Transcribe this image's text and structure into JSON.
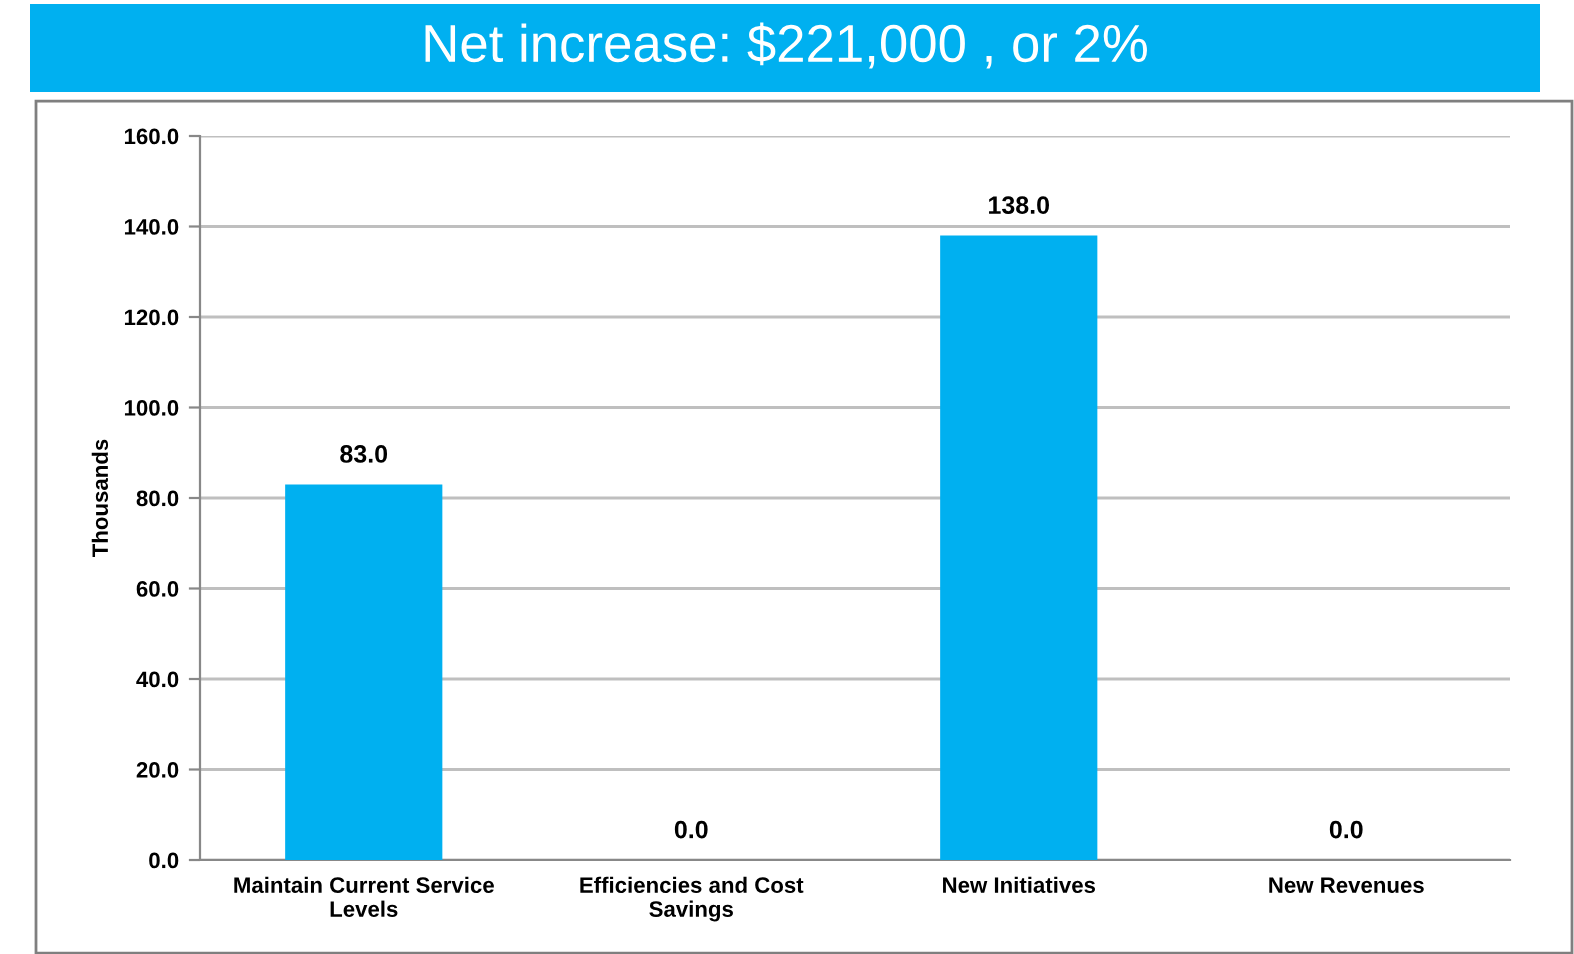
{
  "chart_data": {
    "type": "bar",
    "title": "Net increase: $221,000 , or 2%",
    "ylabel": "Thousands",
    "categories": [
      "Maintain Current Service Levels",
      "Efficiencies and Cost Savings",
      "New Initiatives",
      "New Revenues"
    ],
    "values": [
      83.0,
      0.0,
      138.0,
      0.0
    ],
    "value_labels": [
      "83.0",
      "0.0",
      "138.0",
      "0.0"
    ],
    "color": "#00b0f0",
    "ylim": [
      0,
      160
    ],
    "yticks": [
      {
        "value": 0,
        "label": "0.0"
      },
      {
        "value": 20,
        "label": "20.0"
      },
      {
        "value": 40,
        "label": "40.0"
      },
      {
        "value": 60,
        "label": "60.0"
      },
      {
        "value": 80,
        "label": "80.0"
      },
      {
        "value": 100,
        "label": "100.0"
      },
      {
        "value": 120,
        "label": "120.0"
      },
      {
        "value": 140,
        "label": "140.0"
      },
      {
        "value": 160,
        "label": "160.0"
      }
    ],
    "grid": "y"
  }
}
